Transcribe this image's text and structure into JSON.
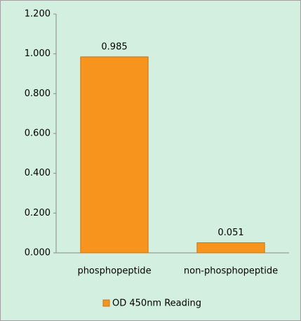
{
  "chart_data": {
    "type": "bar",
    "categories": [
      "phosphopeptide",
      "non-phosphopeptide"
    ],
    "series": [
      {
        "name": "OD 450nm Reading",
        "color": "#f7941d",
        "values": [
          0.985,
          0.051
        ]
      }
    ],
    "ylim": [
      0,
      1.2
    ],
    "yticks": [
      {
        "value": 0,
        "label": "0.000"
      },
      {
        "value": 0.2,
        "label": "0.200"
      },
      {
        "value": 0.4,
        "label": "0.400"
      },
      {
        "value": 0.6,
        "label": "0.600"
      },
      {
        "value": 0.8,
        "label": "0.800"
      },
      {
        "value": 1.0,
        "label": "1.000"
      },
      {
        "value": 1.2,
        "label": "1.200"
      }
    ],
    "grid": false,
    "legend": "bottom"
  }
}
